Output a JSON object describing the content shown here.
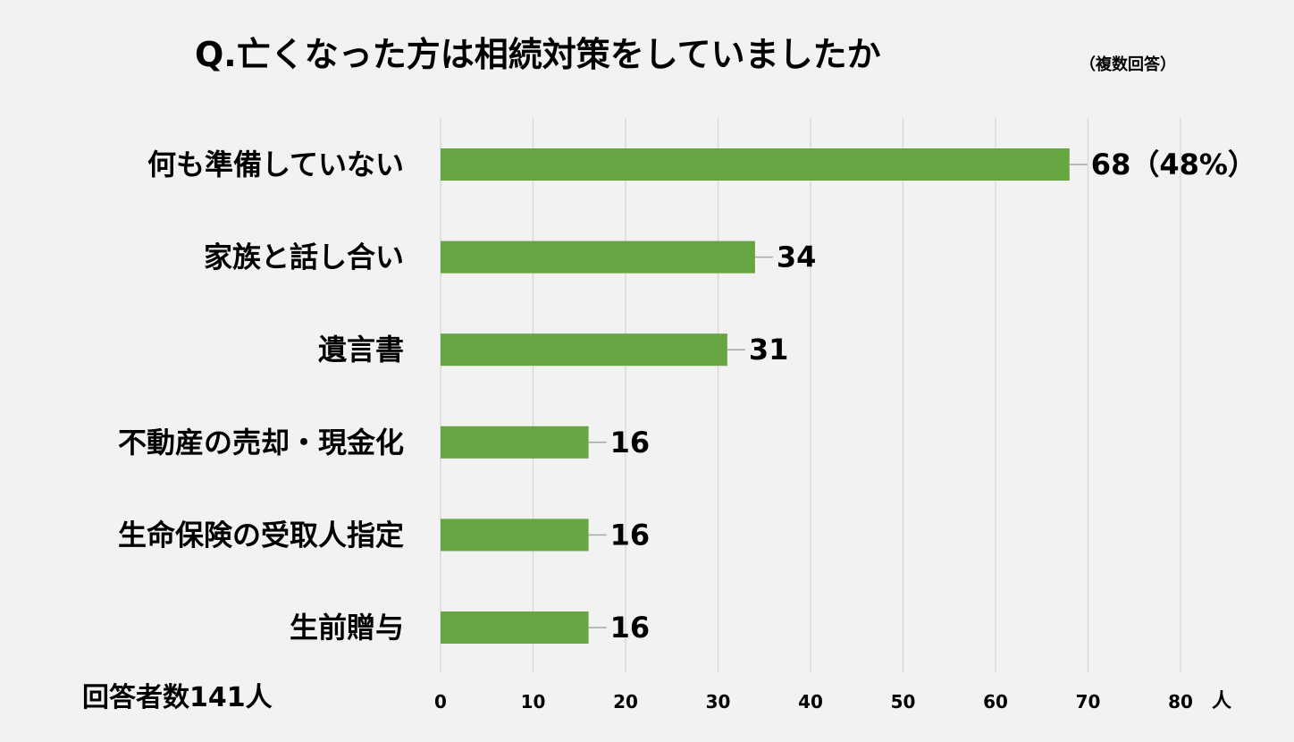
{
  "header": {
    "title": "Q.亡くなった方は相続対策をしていましたか",
    "subtitle": "（複数回答）"
  },
  "footer": {
    "respondents": "回答者数141人"
  },
  "chart_data": {
    "type": "bar",
    "orientation": "horizontal",
    "categories": [
      "何も準備していない",
      "家族と話し合い",
      "遺言書",
      "不動産の売却・現金化",
      "生命保険の受取人指定",
      "生前贈与"
    ],
    "values": [
      68,
      34,
      31,
      16,
      16,
      16
    ],
    "data_labels": [
      "68（48%）",
      "34",
      "31",
      "16",
      "16",
      "16"
    ],
    "x_ticks": [
      "0",
      "10",
      "20",
      "30",
      "40",
      "50",
      "60",
      "70",
      "80"
    ],
    "x_unit": "人",
    "xlim": [
      0,
      80
    ],
    "grid": true,
    "bar_color": "#67a542",
    "gridline_color": "#d9d9d9",
    "legend": "none"
  }
}
